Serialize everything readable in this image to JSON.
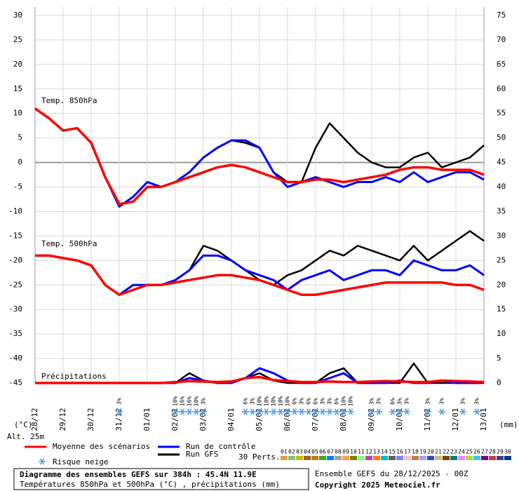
{
  "chart_data": {
    "type": "line",
    "panel_labels": [
      "Temp. 850hPa",
      "Temp. 500hPa",
      "Précipitations"
    ],
    "x": [
      0,
      12,
      24,
      36,
      48,
      60,
      72,
      84,
      96,
      108,
      120,
      132,
      144,
      156,
      168,
      180,
      192,
      204,
      216,
      228,
      240,
      252,
      264,
      276,
      288,
      300,
      312,
      324,
      336,
      348,
      360,
      372,
      384
    ],
    "xlim": [
      0,
      384
    ],
    "xticks": [
      {
        "value": 0,
        "label": "28/12"
      },
      {
        "value": 24,
        "label": "29/12"
      },
      {
        "value": 48,
        "label": "30/12"
      },
      {
        "value": 72,
        "label": "31/12"
      },
      {
        "value": 96,
        "label": "01/01"
      },
      {
        "value": 120,
        "label": "02/01"
      },
      {
        "value": 144,
        "label": "03/01"
      },
      {
        "value": 168,
        "label": "04/01"
      },
      {
        "value": 192,
        "label": "05/01"
      },
      {
        "value": 216,
        "label": "06/01"
      },
      {
        "value": 240,
        "label": "07/01"
      },
      {
        "value": 264,
        "label": "08/01"
      },
      {
        "value": 288,
        "label": "09/01"
      },
      {
        "value": 312,
        "label": "10/01"
      },
      {
        "value": 336,
        "label": "11/01"
      },
      {
        "value": 360,
        "label": "12/01"
      },
      {
        "value": 384,
        "label": "13/01"
      }
    ],
    "ylim": [
      -45,
      30
    ],
    "yticks": [
      30,
      25,
      20,
      15,
      10,
      5,
      0,
      -5,
      -10,
      -15,
      -20,
      -25,
      -30,
      -35,
      -40,
      -45
    ],
    "y2lim": [
      0,
      75
    ],
    "y2ticks": [
      75,
      70,
      65,
      60,
      55,
      50,
      45,
      40,
      35,
      30,
      25,
      20,
      15,
      10,
      5,
      0
    ],
    "ylabel": "(°C)",
    "y2label": "(mm)",
    "grid": true,
    "series": [
      {
        "name": "Moyenne des scénarios",
        "color": "#ff0000",
        "t850": [
          11,
          9,
          6.5,
          7,
          4,
          -3,
          -8.5,
          -8,
          -5,
          -5,
          -4,
          -3,
          -2,
          -1,
          -0.5,
          -1,
          -2,
          -3,
          -4,
          -4,
          -3.5,
          -3.5,
          -4,
          -3.5,
          -3,
          -2.5,
          -1.5,
          -1,
          -1,
          -1.5,
          -1.5,
          -1.5,
          -2.5
        ],
        "t500": [
          -19,
          -19,
          -19.5,
          -20,
          -21,
          -25,
          -27,
          -26,
          -25,
          -25,
          -24.5,
          -24,
          -23.5,
          -23,
          -23,
          -23.5,
          -24,
          -25,
          -26,
          -27,
          -27,
          -26.5,
          -26,
          -25.5,
          -25,
          -24.5,
          -24.5,
          -24.5,
          -24.5,
          -24.5,
          -25,
          -25,
          -26
        ],
        "precip": [
          0,
          0,
          0,
          0,
          0,
          0,
          0,
          0,
          0,
          0,
          0.2,
          0.4,
          0.3,
          0.2,
          0.3,
          1,
          1.2,
          0.6,
          0.4,
          0.2,
          0.2,
          0.3,
          0.2,
          0.2,
          0.3,
          0.4,
          0.3,
          0.2,
          0.2,
          0.5,
          0.4,
          0.3,
          0.2
        ]
      },
      {
        "name": "Run de contrôle",
        "color": "#0000ff",
        "t850": [
          11,
          9,
          6.5,
          7,
          4,
          -3,
          -9,
          -7,
          -4,
          -5,
          -4,
          -2,
          1,
          3,
          4.5,
          4.5,
          3,
          -2,
          -5,
          -4,
          -3,
          -4,
          -5,
          -4,
          -4,
          -3,
          -4,
          -2,
          -4,
          -3,
          -2,
          -2,
          -3.5
        ],
        "t500": [
          -19,
          -19,
          -19.5,
          -20,
          -21,
          -25,
          -27,
          -25,
          -25,
          -25,
          -24,
          -22,
          -19,
          -19,
          -20,
          -22,
          -23,
          -24,
          -26,
          -24,
          -23,
          -22,
          -24,
          -23,
          -22,
          -22,
          -23,
          -20,
          -21,
          -22,
          -22,
          -21,
          -23
        ],
        "precip": [
          0,
          0,
          0,
          0,
          0,
          0,
          0,
          0,
          0,
          0,
          0,
          1,
          0.5,
          0,
          0,
          1,
          3,
          2,
          0.5,
          0,
          0,
          1,
          2,
          0,
          0,
          0,
          0.5,
          0,
          0,
          0.5,
          0,
          0,
          0
        ]
      },
      {
        "name": "Run GFS",
        "color": "#000000",
        "t850": [
          11,
          9,
          6.5,
          7,
          4,
          -3,
          -9,
          -7,
          -4,
          -5,
          -4,
          -2,
          1,
          3,
          4.5,
          4,
          3,
          -2,
          -4,
          -4,
          3,
          8,
          5,
          2,
          0,
          -1,
          -1,
          1,
          2,
          -1,
          0,
          1,
          3.5
        ],
        "t500": [
          -19,
          -19,
          -19.5,
          -20,
          -21,
          -25,
          -27,
          -25,
          -25,
          -25,
          -24,
          -22,
          -17,
          -18,
          -20,
          -22,
          -24,
          -25,
          -23,
          -22,
          -20,
          -18,
          -19,
          -17,
          -18,
          -19,
          -20,
          -17,
          -20,
          -18,
          -16,
          -14,
          -16
        ],
        "precip": [
          0,
          0,
          0,
          0,
          0,
          0,
          0,
          0,
          0,
          0,
          0,
          2,
          0.5,
          0,
          0,
          1,
          2,
          0.5,
          0,
          0,
          0,
          2,
          3,
          0,
          0,
          0,
          0,
          4,
          0,
          0,
          0,
          0,
          0
        ]
      }
    ],
    "snow_risk": {
      "name": "Risque neige",
      "hours": [
        72,
        120,
        126,
        132,
        138,
        144,
        180,
        186,
        192,
        198,
        204,
        210,
        216,
        222,
        228,
        234,
        240,
        246,
        252,
        258,
        264,
        270,
        288,
        294,
        306,
        312,
        318,
        336,
        348,
        366,
        378
      ],
      "labels": [
        "3%",
        "10%",
        "16%",
        "16%",
        "10%",
        "3%",
        "6%",
        "3%",
        "10%",
        "10%",
        "10%",
        "10%",
        "10%",
        "6%",
        "3%",
        "6%",
        "6%",
        "3%",
        "3%",
        "6%",
        "10%",
        "10%",
        "3%",
        "3%",
        "6%",
        "3%",
        "3%",
        "3%",
        "3%",
        "3%",
        "3%"
      ]
    },
    "altitude": "Alt. 25m",
    "perturbations": {
      "title": "30 Perts.",
      "names": [
        "01",
        "02",
        "03",
        "04",
        "05",
        "06",
        "07",
        "08",
        "09",
        "10",
        "11",
        "12",
        "13",
        "14",
        "15",
        "16",
        "17",
        "18",
        "19",
        "20",
        "21",
        "22",
        "23",
        "24",
        "25",
        "26",
        "27",
        "28",
        "29",
        "30"
      ],
      "colors": [
        "#e0a040",
        "#80c080",
        "#c0c000",
        "#a06030",
        "#c08000",
        "#40a040",
        "#0080ff",
        "#a0a0a0",
        "#ffa040",
        "#808000",
        "#80ff80",
        "#c040c0",
        "#ff8000",
        "#00c0c0",
        "#606060",
        "#8080ff",
        "#ffc0c0",
        "#c08040",
        "#a0a0ff",
        "#4040c0",
        "#c0c080",
        "#804000",
        "#008080",
        "#ff80ff",
        "#a0e040",
        "#40c0ff",
        "#800080",
        "#c04040",
        "#404080",
        "#004080"
      ]
    },
    "footer": {
      "title": "Diagramme des ensembles GEFS sur 384h : 45.4N 11.9E",
      "subtitle": "Températures 850hPa et 500hPa (°C) , précipitations (mm)",
      "run": "Ensemble GEFS du 28/12/2025 - 00Z",
      "copyright": "Copyright 2025 Meteociel.fr"
    }
  }
}
